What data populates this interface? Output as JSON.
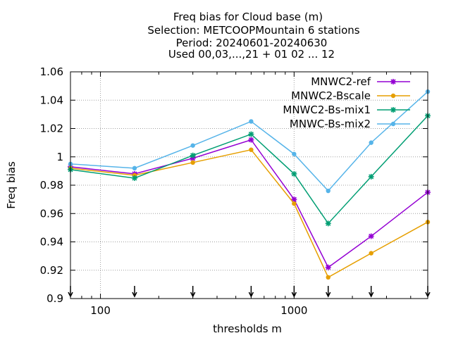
{
  "chart_data": {
    "type": "line",
    "title_lines": [
      "Freq bias  for Cloud base (m)",
      "Selection: METCOOPMountain      6 stations",
      "Period: 20240601-20240630",
      "Used 00,03,...,21 + 01 02 ... 12"
    ],
    "xlabel": "thresholds m",
    "ylabel": "Freq bias",
    "x_scale": "log",
    "xlim": [
      70,
      4900
    ],
    "ylim": [
      0.9,
      1.06
    ],
    "x_ticks": [
      100,
      1000
    ],
    "x_tick_labels": [
      "100",
      "1000"
    ],
    "y_ticks": [
      0.9,
      0.92,
      0.94,
      0.96,
      0.98,
      1,
      1.02,
      1.04,
      1.06
    ],
    "y_tick_labels": [
      "0.9",
      "0.92",
      "0.94",
      "0.96",
      "0.98",
      "1",
      "1.02",
      "1.04",
      "1.06"
    ],
    "grid": true,
    "legend_position": "top-right",
    "x": [
      70,
      150,
      300,
      600,
      1000,
      1500,
      2500,
      4900
    ],
    "series": [
      {
        "name": "MNWC2-ref",
        "color": "#9400d3",
        "marker": "star",
        "values": [
          0.993,
          0.988,
          0.999,
          1.012,
          0.97,
          0.922,
          0.944,
          0.975
        ]
      },
      {
        "name": "MNWC2-Bscale",
        "color": "#e69f00",
        "marker": "circle",
        "values": [
          0.992,
          0.987,
          0.996,
          1.005,
          0.967,
          0.915,
          0.932,
          0.954
        ]
      },
      {
        "name": "MNWC2-Bs-mix1",
        "color": "#009e73",
        "marker": "star",
        "values": [
          0.991,
          0.985,
          1.001,
          1.016,
          0.988,
          0.953,
          0.986,
          1.029
        ]
      },
      {
        "name": "MNWC-Bs-mix2",
        "color": "#56b4e9",
        "marker": "circle",
        "values": [
          0.995,
          0.992,
          1.008,
          1.025,
          1.002,
          0.976,
          1.01,
          1.046
        ]
      }
    ],
    "bottom_arrow_x": [
      70,
      150,
      300,
      600,
      1000,
      1500,
      2500,
      4900
    ]
  }
}
